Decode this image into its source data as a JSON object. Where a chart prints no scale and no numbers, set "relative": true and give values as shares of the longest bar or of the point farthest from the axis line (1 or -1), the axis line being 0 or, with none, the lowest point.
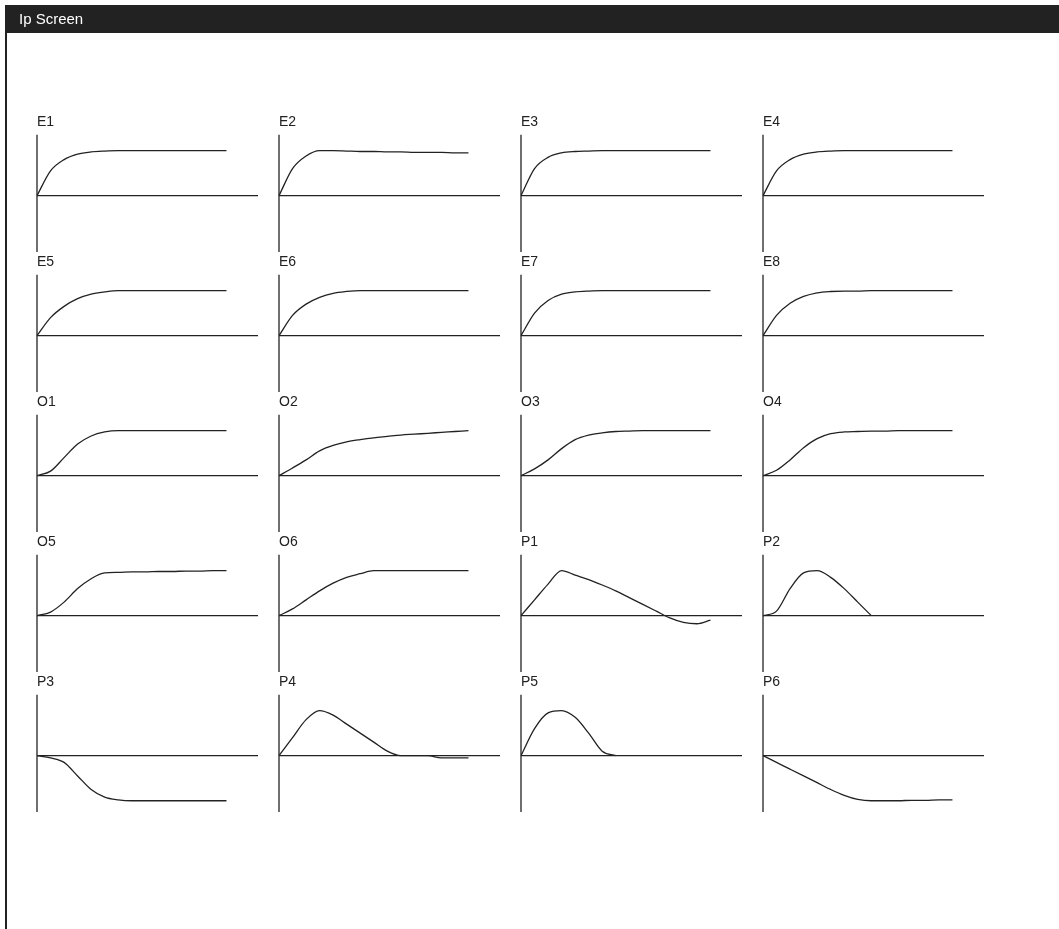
{
  "chart_data": [
    {
      "type": "other",
      "title": "Ip Screen"
    },
    {
      "type": "line",
      "title": "E1",
      "relative": true,
      "categories": [
        null,
        null,
        null,
        null,
        null,
        null,
        null,
        null,
        null,
        null,
        null,
        null,
        null,
        null,
        null,
        null
      ],
      "series": [
        {
          "color": "#222222",
          "values": [
            0,
            0.55,
            0.8,
            0.92,
            0.97,
            0.99,
            1,
            1,
            1,
            1,
            1,
            1,
            1,
            1,
            1,
            null
          ]
        }
      ]
    },
    {
      "type": "line",
      "title": "E2",
      "relative": true,
      "categories": [
        null,
        null,
        null,
        null,
        null,
        null,
        null,
        null,
        null,
        null,
        null,
        null,
        null,
        null,
        null,
        null
      ],
      "series": [
        {
          "color": "#222222",
          "values": [
            0,
            0.6,
            0.88,
            1,
            1,
            0.99,
            0.98,
            0.98,
            0.97,
            0.97,
            0.96,
            0.96,
            0.96,
            0.95,
            0.95,
            null
          ]
        }
      ]
    },
    {
      "type": "line",
      "title": "E3",
      "relative": true,
      "categories": [
        null,
        null,
        null,
        null,
        null,
        null,
        null,
        null,
        null,
        null,
        null,
        null,
        null,
        null,
        null,
        null
      ],
      "series": [
        {
          "color": "#222222",
          "values": [
            0,
            0.6,
            0.85,
            0.95,
            0.98,
            0.99,
            1,
            1,
            1,
            1,
            1,
            1,
            1,
            1,
            1,
            null
          ]
        }
      ]
    },
    {
      "type": "line",
      "title": "E4",
      "relative": true,
      "categories": [
        null,
        null,
        null,
        null,
        null,
        null,
        null,
        null,
        null,
        null,
        null,
        null,
        null,
        null,
        null,
        null
      ],
      "series": [
        {
          "color": "#222222",
          "values": [
            0,
            0.55,
            0.8,
            0.92,
            0.97,
            0.99,
            1,
            1,
            1,
            1,
            1,
            1,
            1,
            1,
            1,
            null
          ]
        }
      ]
    },
    {
      "type": "line",
      "title": "E5",
      "relative": true,
      "categories": [
        null,
        null,
        null,
        null,
        null,
        null,
        null,
        null,
        null,
        null,
        null,
        null,
        null,
        null,
        null,
        null
      ],
      "series": [
        {
          "color": "#222222",
          "values": [
            0,
            0.4,
            0.65,
            0.82,
            0.92,
            0.97,
            1,
            1,
            1,
            1,
            1,
            1,
            1,
            1,
            1,
            null
          ]
        }
      ]
    },
    {
      "type": "line",
      "title": "E6",
      "relative": true,
      "categories": [
        null,
        null,
        null,
        null,
        null,
        null,
        null,
        null,
        null,
        null,
        null,
        null,
        null,
        null,
        null,
        null
      ],
      "series": [
        {
          "color": "#222222",
          "values": [
            0,
            0.45,
            0.7,
            0.85,
            0.94,
            0.98,
            1,
            1,
            1,
            1,
            1,
            1,
            1,
            1,
            1,
            null
          ]
        }
      ]
    },
    {
      "type": "line",
      "title": "E7",
      "relative": true,
      "categories": [
        null,
        null,
        null,
        null,
        null,
        null,
        null,
        null,
        null,
        null,
        null,
        null,
        null,
        null,
        null,
        null
      ],
      "series": [
        {
          "color": "#222222",
          "values": [
            0,
            0.5,
            0.78,
            0.92,
            0.97,
            0.99,
            1,
            1,
            1,
            1,
            1,
            1,
            1,
            1,
            1,
            null
          ]
        }
      ]
    },
    {
      "type": "line",
      "title": "E8",
      "relative": true,
      "categories": [
        null,
        null,
        null,
        null,
        null,
        null,
        null,
        null,
        null,
        null,
        null,
        null,
        null,
        null,
        null,
        null
      ],
      "series": [
        {
          "color": "#222222",
          "values": [
            0,
            0.45,
            0.72,
            0.87,
            0.95,
            0.98,
            0.99,
            0.99,
            1,
            1,
            1,
            1,
            1,
            1,
            1,
            null
          ]
        }
      ]
    },
    {
      "type": "line",
      "title": "O1",
      "relative": true,
      "categories": [
        null,
        null,
        null,
        null,
        null,
        null,
        null,
        null,
        null,
        null,
        null,
        null,
        null,
        null,
        null,
        null
      ],
      "series": [
        {
          "color": "#222222",
          "values": [
            0,
            0.1,
            0.4,
            0.7,
            0.88,
            0.97,
            1,
            1,
            1,
            1,
            1,
            1,
            1,
            1,
            1,
            null
          ]
        }
      ]
    },
    {
      "type": "line",
      "title": "O2",
      "relative": true,
      "categories": [
        null,
        null,
        null,
        null,
        null,
        null,
        null,
        null,
        null,
        null,
        null,
        null,
        null,
        null,
        null,
        null
      ],
      "series": [
        {
          "color": "#222222",
          "values": [
            0,
            0.17,
            0.35,
            0.55,
            0.67,
            0.75,
            0.8,
            0.84,
            0.87,
            0.9,
            0.92,
            0.94,
            0.96,
            0.98,
            1,
            null
          ]
        }
      ]
    },
    {
      "type": "line",
      "title": "O3",
      "relative": true,
      "categories": [
        null,
        null,
        null,
        null,
        null,
        null,
        null,
        null,
        null,
        null,
        null,
        null,
        null,
        null,
        null,
        null
      ],
      "series": [
        {
          "color": "#222222",
          "values": [
            0,
            0.15,
            0.35,
            0.6,
            0.8,
            0.9,
            0.95,
            0.98,
            0.99,
            1,
            1,
            1,
            1,
            1,
            1,
            null
          ]
        }
      ]
    },
    {
      "type": "line",
      "title": "O4",
      "relative": true,
      "categories": [
        null,
        null,
        null,
        null,
        null,
        null,
        null,
        null,
        null,
        null,
        null,
        null,
        null,
        null,
        null,
        null
      ],
      "series": [
        {
          "color": "#222222",
          "values": [
            0,
            0.12,
            0.35,
            0.62,
            0.82,
            0.93,
            0.97,
            0.98,
            0.99,
            0.99,
            1,
            1,
            1,
            1,
            1,
            null
          ]
        }
      ]
    },
    {
      "type": "line",
      "title": "O5",
      "relative": true,
      "categories": [
        null,
        null,
        null,
        null,
        null,
        null,
        null,
        null,
        null,
        null,
        null,
        null,
        null,
        null,
        null,
        null
      ],
      "series": [
        {
          "color": "#222222",
          "values": [
            0,
            0.08,
            0.3,
            0.6,
            0.82,
            0.95,
            0.96,
            0.97,
            0.97,
            0.98,
            0.98,
            0.99,
            0.99,
            1,
            1,
            null
          ]
        }
      ]
    },
    {
      "type": "line",
      "title": "O6",
      "relative": true,
      "categories": [
        null,
        null,
        null,
        null,
        null,
        null,
        null,
        null,
        null,
        null,
        null,
        null,
        null,
        null,
        null,
        null
      ],
      "series": [
        {
          "color": "#222222",
          "values": [
            0,
            0.15,
            0.35,
            0.55,
            0.72,
            0.85,
            0.93,
            1,
            1,
            1,
            1,
            1,
            1,
            1,
            1,
            null
          ]
        }
      ]
    },
    {
      "type": "line",
      "title": "P1",
      "relative": true,
      "categories": [
        null,
        null,
        null,
        null,
        null,
        null,
        null,
        null,
        null,
        null,
        null,
        null,
        null,
        null,
        null,
        null
      ],
      "series": [
        {
          "color": "#222222",
          "values": [
            0,
            0.35,
            0.7,
            1,
            0.9,
            0.8,
            0.68,
            0.55,
            0.4,
            0.25,
            0.1,
            -0.05,
            -0.15,
            -0.18,
            -0.1,
            null
          ]
        }
      ]
    },
    {
      "type": "line",
      "title": "P2",
      "relative": true,
      "categories": [
        null,
        null,
        null,
        null,
        null,
        null,
        null,
        null,
        null,
        null,
        null,
        null,
        null,
        null,
        null,
        null
      ],
      "series": [
        {
          "color": "#222222",
          "values": [
            0,
            0.1,
            0.6,
            0.95,
            1,
            0.85,
            0.6,
            0.3,
            0,
            null,
            null,
            null,
            null,
            null,
            null,
            null
          ]
        }
      ]
    },
    {
      "type": "line",
      "title": "P3",
      "relative": true,
      "categories": [
        null,
        null,
        null,
        null,
        null,
        null,
        null,
        null,
        null,
        null,
        null,
        null,
        null,
        null,
        null,
        null
      ],
      "series": [
        {
          "color": "#222222",
          "values": [
            0,
            -0.05,
            -0.15,
            -0.45,
            -0.75,
            -0.92,
            -0.98,
            -1,
            -1,
            -1,
            -1,
            -1,
            -1,
            -1,
            -1,
            null
          ]
        }
      ]
    },
    {
      "type": "line",
      "title": "P4",
      "relative": true,
      "categories": [
        null,
        null,
        null,
        null,
        null,
        null,
        null,
        null,
        null,
        null,
        null,
        null,
        null,
        null,
        null,
        null
      ],
      "series": [
        {
          "color": "#222222",
          "values": [
            0,
            0.4,
            0.8,
            1,
            0.9,
            0.7,
            0.5,
            0.3,
            0.1,
            0,
            0,
            0,
            -0.05,
            -0.05,
            -0.05,
            null
          ]
        }
      ]
    },
    {
      "type": "line",
      "title": "P5",
      "relative": true,
      "categories": [
        null,
        null,
        null,
        null,
        null,
        null,
        null,
        null,
        null,
        null,
        null,
        null,
        null,
        null,
        null,
        null
      ],
      "series": [
        {
          "color": "#222222",
          "values": [
            0,
            0.6,
            0.95,
            1,
            0.85,
            0.5,
            0.1,
            0,
            null,
            null,
            null,
            null,
            null,
            null,
            null,
            null
          ]
        }
      ]
    },
    {
      "type": "line",
      "title": "P6",
      "relative": true,
      "categories": [
        null,
        null,
        null,
        null,
        null,
        null,
        null,
        null,
        null,
        null,
        null,
        null,
        null,
        null,
        null,
        null
      ],
      "series": [
        {
          "color": "#222222",
          "values": [
            0,
            -0.15,
            -0.3,
            -0.45,
            -0.6,
            -0.75,
            -0.88,
            -0.97,
            -1,
            -1,
            -1,
            -0.99,
            -0.99,
            -0.98,
            -0.98,
            null
          ]
        }
      ]
    }
  ]
}
